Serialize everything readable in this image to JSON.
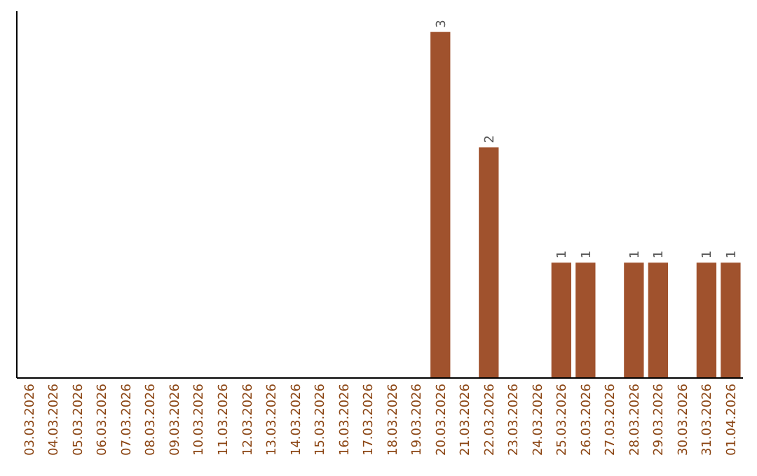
{
  "chart_data": {
    "type": "bar",
    "categories": [
      "03.03.2026",
      "04.03.2026",
      "05.03.2026",
      "06.03.2026",
      "07.03.2026",
      "08.03.2026",
      "09.03.2026",
      "10.03.2026",
      "11.03.2026",
      "12.03.2026",
      "13.03.2026",
      "14.03.2026",
      "15.03.2026",
      "16.03.2026",
      "17.03.2026",
      "18.03.2026",
      "19.03.2026",
      "20.03.2026",
      "21.03.2026",
      "22.03.2026",
      "23.03.2026",
      "24.03.2026",
      "25.03.2026",
      "26.03.2026",
      "27.03.2026",
      "28.03.2026",
      "29.03.2026",
      "30.03.2026",
      "31.03.2026",
      "01.04.2026"
    ],
    "values": [
      null,
      null,
      null,
      null,
      null,
      null,
      null,
      null,
      null,
      null,
      null,
      null,
      null,
      null,
      null,
      null,
      null,
      3,
      null,
      2,
      null,
      null,
      1,
      1,
      null,
      1,
      1,
      null,
      1,
      1
    ],
    "data_labels": true,
    "color": "#a0522d",
    "tick_labels": "x"
  }
}
